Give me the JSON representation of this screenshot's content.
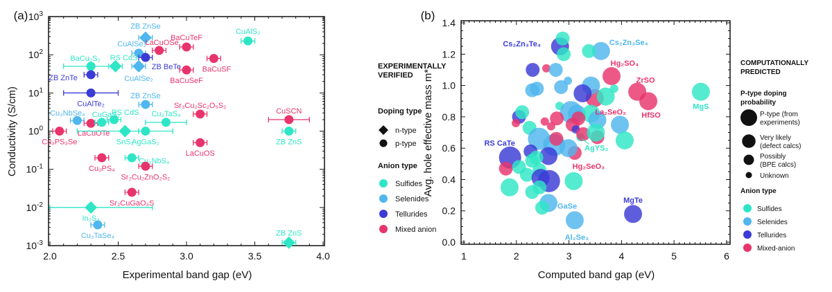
{
  "colors": {
    "Sulfides": "#2ee6c6",
    "Selenides": "#4fb6ee",
    "Tellurides": "#3b3bd6",
    "Mixed anion": "#e8346c",
    "axis": "#111111"
  },
  "chart_data": [
    {
      "type": "scatter",
      "panel_label": "(a)",
      "xlabel": "Experimental band gap (eV)",
      "ylabel": "Conductivity (S/cm)",
      "xlim": [
        2.0,
        4.0
      ],
      "ylim": [
        0.001,
        1000
      ],
      "yscale": "log",
      "xticks": [
        "2.0",
        "2.5",
        "3.0",
        "3.5",
        "4.0"
      ],
      "yticks": [
        {
          "base": "10",
          "exp": "3"
        },
        {
          "base": "10",
          "exp": "2"
        },
        {
          "base": "10",
          "exp": "1"
        },
        {
          "base": "10",
          "exp": "0"
        },
        {
          "base": "10",
          "exp": "-1"
        },
        {
          "base": "10",
          "exp": "-2"
        },
        {
          "base": "10",
          "exp": "-3"
        }
      ],
      "legend": {
        "title": [
          "EXPERIMENTALLY",
          "VERIFIED"
        ],
        "doping_title": "Doping type",
        "doping": [
          {
            "label": "n-type",
            "marker": "diamond"
          },
          {
            "label": "p-type",
            "marker": "circle"
          }
        ],
        "anion_title": "Anion type",
        "anion": [
          "Sulfides",
          "Selenides",
          "Tellurides",
          "Mixed anion"
        ],
        "placement": "right"
      },
      "points": [
        {
          "label": "ZB ZnSe",
          "x": 2.7,
          "y": 280,
          "doping": "n-type",
          "anion": "Selenides"
        },
        {
          "label": "CuAlSe₂",
          "x": 2.65,
          "y": 110,
          "doping": "p-type",
          "anion": "Selenides"
        },
        {
          "label": "LaCuOSe",
          "x": 2.8,
          "y": 130,
          "doping": "p-type",
          "anion": "Mixed anion"
        },
        {
          "label": "BaCuTeF",
          "x": 3.0,
          "y": 160,
          "doping": "p-type",
          "anion": "Mixed anion"
        },
        {
          "label": "CuAlS₂",
          "x": 3.45,
          "y": 230,
          "doping": "p-type",
          "anion": "Sulfides"
        },
        {
          "label": "BaCu₂S₂",
          "x": 2.3,
          "y": 50,
          "doping": "p-type",
          "anion": "Sulfides",
          "xerr": [
            2.1,
            2.5
          ]
        },
        {
          "label": "RS CdS",
          "x": 2.48,
          "y": 50,
          "doping": "n-type",
          "anion": "Sulfides"
        },
        {
          "label": "ZB BeTe",
          "x": 2.7,
          "y": 85,
          "doping": "p-type",
          "anion": "Tellurides"
        },
        {
          "label": "CuAlSe₂",
          "x": 2.65,
          "y": 50,
          "doping": "n-type",
          "anion": "Selenides"
        },
        {
          "label": "ZB ZnTe",
          "x": 2.3,
          "y": 30,
          "doping": "p-type",
          "anion": "Tellurides"
        },
        {
          "label": "BaCuSF",
          "x": 3.2,
          "y": 80,
          "doping": "p-type",
          "anion": "Mixed anion"
        },
        {
          "label": "BaCuSeF",
          "x": 3.0,
          "y": 40,
          "doping": "p-type",
          "anion": "Mixed anion"
        },
        {
          "label": "CuAlTe₂",
          "x": 2.3,
          "y": 10,
          "doping": "p-type",
          "anion": "Tellurides",
          "xerr": [
            2.1,
            2.5
          ]
        },
        {
          "label": "ZB ZnSe",
          "x": 2.7,
          "y": 5,
          "doping": "p-type",
          "anion": "Selenides"
        },
        {
          "label": "Sr₃Cu₂Sc₂O₅S₂",
          "x": 3.1,
          "y": 2.8,
          "doping": "p-type",
          "anion": "Mixed anion"
        },
        {
          "label": "Cu₃NbSe₄",
          "x": 2.2,
          "y": 1.9,
          "doping": "p-type",
          "anion": "Selenides"
        },
        {
          "label": "LaCuOTe",
          "x": 2.3,
          "y": 1.6,
          "doping": "p-type",
          "anion": "Mixed anion"
        },
        {
          "label": "CuGaS₂",
          "x": 2.38,
          "y": 1.7,
          "doping": "p-type",
          "anion": "Sulfides"
        },
        {
          "label": "RS CdS",
          "x": 2.47,
          "y": 2.0,
          "doping": "p-type",
          "anion": "Sulfides"
        },
        {
          "label": "Cu₃TaS₄",
          "x": 2.85,
          "y": 1.7,
          "doping": "p-type",
          "anion": "Sulfides",
          "xerr": [
            2.7,
            3.0
          ]
        },
        {
          "label": "CuSCN",
          "x": 3.75,
          "y": 2.0,
          "doping": "p-type",
          "anion": "Mixed anion",
          "xerr": [
            3.6,
            3.9
          ]
        },
        {
          "label": "Cu₃PS₃Se",
          "x": 2.07,
          "y": 1.0,
          "doping": "p-type",
          "anion": "Mixed anion"
        },
        {
          "label": "SnS₂",
          "x": 2.55,
          "y": 1.0,
          "doping": "n-type",
          "anion": "Sulfides",
          "xerr": [
            2.2,
            2.65
          ]
        },
        {
          "label": "AgGaS₂",
          "x": 2.7,
          "y": 1.0,
          "doping": "p-type",
          "anion": "Sulfides",
          "xerr": [
            2.65,
            2.9
          ]
        },
        {
          "label": "ZB ZnS",
          "x": 3.75,
          "y": 1.0,
          "doping": "p-type",
          "anion": "Sulfides"
        },
        {
          "label": "LaCuOS",
          "x": 3.1,
          "y": 0.5,
          "doping": "p-type",
          "anion": "Mixed anion"
        },
        {
          "label": "Cu₃PS₄",
          "x": 2.38,
          "y": 0.2,
          "doping": "p-type",
          "anion": "Mixed anion"
        },
        {
          "label": "Cu₃NbS₄",
          "x": 2.6,
          "y": 0.2,
          "doping": "p-type",
          "anion": "Sulfides"
        },
        {
          "label": "Sr₂Cu₂ZnO₂S₂",
          "x": 2.7,
          "y": 0.12,
          "doping": "p-type",
          "anion": "Mixed anion"
        },
        {
          "label": "Sr₂CuGaO₃S",
          "x": 2.6,
          "y": 0.025,
          "doping": "p-type",
          "anion": "Mixed anion"
        },
        {
          "label": "In₂S₃",
          "x": 2.3,
          "y": 0.01,
          "doping": "n-type",
          "anion": "Sulfides",
          "xerr": [
            2.0,
            2.75
          ]
        },
        {
          "label": "Cu₃TaSe₄",
          "x": 2.35,
          "y": 0.0035,
          "doping": "p-type",
          "anion": "Selenides"
        },
        {
          "label": "ZB ZnS",
          "x": 3.75,
          "y": 0.0012,
          "doping": "n-type",
          "anion": "Sulfides"
        }
      ]
    },
    {
      "type": "scatter",
      "panel_label": "(b)",
      "xlabel": "Computed band gap (eV)",
      "ylabel": "Avg. hole effective mass m*",
      "xlim": [
        1,
        6
      ],
      "ylim": [
        0.0,
        1.4
      ],
      "xticks": [
        "1",
        "2",
        "3",
        "4",
        "5",
        "6"
      ],
      "yticks": [
        "1.4",
        "1.2",
        "1.0",
        "0.8",
        "0.6",
        "0.4",
        "0.2",
        "0.0"
      ],
      "legend": {
        "title": [
          "COMPUTATIONALLY",
          "PREDICTED"
        ],
        "prob_title": [
          "P-type doping",
          "probability"
        ],
        "prob": [
          [
            "P-type (from",
            "experiments)"
          ],
          [
            "Very likely",
            "(defect calcs)"
          ],
          [
            "Possibly",
            "(BPE calcs)"
          ],
          [
            "Unknown"
          ]
        ],
        "anion_title": "Anion type",
        "anion": [
          "Sulfides",
          "Selenides",
          "Tellurides",
          "Mixed-anion"
        ],
        "placement": "right"
      },
      "points": [
        {
          "label": "Cs₂Zn₃Te₄",
          "x": 2.83,
          "y": 1.25,
          "anion": "Tellurides",
          "prob": "Very likely"
        },
        {
          "label": "Cs₂Zn₃Se₄",
          "x": 3.61,
          "y": 1.22,
          "anion": "Selenides",
          "prob": "Very likely"
        },
        {
          "label": "Hg₂SO₄",
          "x": 3.81,
          "y": 1.06,
          "anion": "Mixed anion",
          "prob": "Very likely"
        },
        {
          "label": "ZrSO",
          "x": 4.3,
          "y": 0.96,
          "anion": "Mixed anion",
          "prob": "Very likely"
        },
        {
          "label": "HfSO",
          "x": 4.51,
          "y": 0.9,
          "anion": "Mixed anion",
          "prob": "Very likely"
        },
        {
          "label": "MgS",
          "x": 5.51,
          "y": 0.96,
          "anion": "Sulfides",
          "prob": "Very likely"
        },
        {
          "label": "La₂SeO₂",
          "x": 3.49,
          "y": 0.92,
          "anion": "Mixed anion",
          "prob": "Very likely"
        },
        {
          "label": "AgYS₂",
          "x": 3.22,
          "y": 0.67,
          "anion": "Sulfides",
          "prob": "Unknown"
        },
        {
          "label": "RS CaTe",
          "x": 1.88,
          "y": 0.54,
          "anion": "Tellurides",
          "prob": "P-type"
        },
        {
          "label": "Hg₂SeO₃",
          "x": 3.11,
          "y": 0.57,
          "anion": "Mixed anion",
          "prob": "Possibly"
        },
        {
          "label": "GaSe",
          "x": 2.61,
          "y": 0.25,
          "anion": "Selenides",
          "prob": "Very likely"
        },
        {
          "label": "Al₂Se₃",
          "x": 3.11,
          "y": 0.14,
          "anion": "Selenides",
          "prob": "Very likely"
        },
        {
          "label": "MgTe",
          "x": 4.22,
          "y": 0.18,
          "anion": "Tellurides",
          "prob": "Very likely"
        },
        {
          "x": 2.88,
          "y": 1.3,
          "anion": "Sulfides",
          "prob": "Possibly"
        },
        {
          "x": 2.9,
          "y": 1.2,
          "anion": "Sulfides",
          "prob": "Possibly"
        },
        {
          "x": 3.38,
          "y": 1.22,
          "anion": "Sulfides",
          "prob": "Possibly"
        },
        {
          "x": 2.31,
          "y": 1.1,
          "anion": "Tellurides",
          "prob": "Possibly"
        },
        {
          "x": 2.57,
          "y": 1.11,
          "anion": "Mixed anion",
          "prob": "Unknown"
        },
        {
          "x": 2.75,
          "y": 1.1,
          "anion": "Selenides",
          "prob": "Possibly"
        },
        {
          "x": 2.98,
          "y": 1.03,
          "anion": "Selenides",
          "prob": "Unknown"
        },
        {
          "x": 2.85,
          "y": 0.99,
          "anion": "Selenides",
          "prob": "Possibly"
        },
        {
          "x": 2.3,
          "y": 0.97,
          "anion": "Selenides",
          "prob": "Possibly"
        },
        {
          "x": 2.39,
          "y": 0.98,
          "anion": "Selenides",
          "prob": "Possibly"
        },
        {
          "x": 3.42,
          "y": 1.0,
          "anion": "Selenides",
          "prob": "Very likely"
        },
        {
          "x": 3.26,
          "y": 0.95,
          "anion": "Tellurides",
          "prob": "Very likely"
        },
        {
          "x": 3.7,
          "y": 0.93,
          "anion": "Sulfides",
          "prob": "Very likely"
        },
        {
          "x": 3.86,
          "y": 0.98,
          "anion": "Sulfides",
          "prob": "Unknown"
        },
        {
          "x": 2.82,
          "y": 0.87,
          "anion": "Sulfides",
          "prob": "Unknown"
        },
        {
          "x": 3.04,
          "y": 0.83,
          "anion": "Selenides",
          "prob": "P-type"
        },
        {
          "x": 3.15,
          "y": 0.82,
          "anion": "Selenides",
          "prob": "Very likely"
        },
        {
          "x": 3.42,
          "y": 0.82,
          "anion": "Sulfides",
          "prob": "Very likely"
        },
        {
          "x": 3.54,
          "y": 0.78,
          "anion": "Selenides",
          "prob": "Very likely"
        },
        {
          "x": 2.05,
          "y": 0.8,
          "anion": "Tellurides",
          "prob": "Possibly"
        },
        {
          "x": 2.11,
          "y": 0.83,
          "anion": "Sulfides",
          "prob": "Possibly"
        },
        {
          "x": 1.99,
          "y": 0.76,
          "anion": "Mixed anion",
          "prob": "Unknown"
        },
        {
          "x": 2.77,
          "y": 0.79,
          "anion": "Mixed anion",
          "prob": "Possibly"
        },
        {
          "x": 2.54,
          "y": 0.77,
          "anion": "Mixed anion",
          "prob": "Unknown"
        },
        {
          "x": 2.66,
          "y": 0.74,
          "anion": "Mixed anion",
          "prob": "Unknown"
        },
        {
          "x": 3.18,
          "y": 0.79,
          "anion": "Mixed anion",
          "prob": "Possibly"
        },
        {
          "x": 3.07,
          "y": 0.75,
          "anion": "Mixed anion",
          "prob": "Possibly"
        },
        {
          "x": 3.13,
          "y": 0.72,
          "anion": "Tellurides",
          "prob": "Unknown"
        },
        {
          "x": 3.27,
          "y": 0.69,
          "anion": "Mixed anion",
          "prob": "Possibly"
        },
        {
          "x": 3.54,
          "y": 0.67,
          "anion": "Mixed anion",
          "prob": "Possibly"
        },
        {
          "x": 3.51,
          "y": 0.7,
          "anion": "Sulfides",
          "prob": "Very likely"
        },
        {
          "x": 3.97,
          "y": 0.75,
          "anion": "Selenides",
          "prob": "Very likely"
        },
        {
          "x": 4.06,
          "y": 0.65,
          "anion": "Sulfides",
          "prob": "Very likely"
        },
        {
          "x": 2.25,
          "y": 0.73,
          "anion": "Sulfides",
          "prob": "Possibly"
        },
        {
          "x": 2.43,
          "y": 0.66,
          "anion": "Selenides",
          "prob": "P-type"
        },
        {
          "x": 2.72,
          "y": 0.62,
          "anion": "Selenides",
          "prob": "P-type"
        },
        {
          "x": 2.76,
          "y": 0.66,
          "anion": "Mixed anion",
          "prob": "Possibly"
        },
        {
          "x": 2.99,
          "y": 0.6,
          "anion": "Selenides",
          "prob": "Very likely"
        },
        {
          "x": 2.27,
          "y": 0.58,
          "anion": "Tellurides",
          "prob": "Possibly"
        },
        {
          "x": 2.61,
          "y": 0.55,
          "anion": "Tellurides",
          "prob": "Very likely"
        },
        {
          "x": 2.3,
          "y": 0.52,
          "anion": "Sulfides",
          "prob": "Possibly"
        },
        {
          "x": 2.38,
          "y": 0.54,
          "anion": "Sulfides",
          "prob": "Possibly"
        },
        {
          "x": 1.8,
          "y": 0.47,
          "anion": "Mixed anion",
          "prob": "Possibly"
        },
        {
          "x": 2.05,
          "y": 0.48,
          "anion": "Sulfides",
          "prob": "Possibly"
        },
        {
          "x": 2.2,
          "y": 0.43,
          "anion": "Sulfides",
          "prob": "Possibly"
        },
        {
          "x": 2.44,
          "y": 0.46,
          "anion": "Sulfides",
          "prob": "Possibly"
        },
        {
          "x": 2.46,
          "y": 0.41,
          "anion": "Tellurides",
          "prob": "Very likely"
        },
        {
          "x": 2.62,
          "y": 0.39,
          "anion": "Tellurides",
          "prob": "P-type"
        },
        {
          "x": 3.09,
          "y": 0.39,
          "anion": "Sulfides",
          "prob": "Very likely"
        },
        {
          "x": 1.87,
          "y": 0.35,
          "anion": "Sulfides",
          "prob": "Very likely"
        },
        {
          "x": 2.3,
          "y": 0.32,
          "anion": "Sulfides",
          "prob": "Possibly"
        },
        {
          "x": 2.44,
          "y": 0.35,
          "anion": "Sulfides",
          "prob": "Possibly"
        },
        {
          "x": 2.49,
          "y": 0.22,
          "anion": "Sulfides",
          "prob": "Possibly"
        }
      ]
    }
  ]
}
